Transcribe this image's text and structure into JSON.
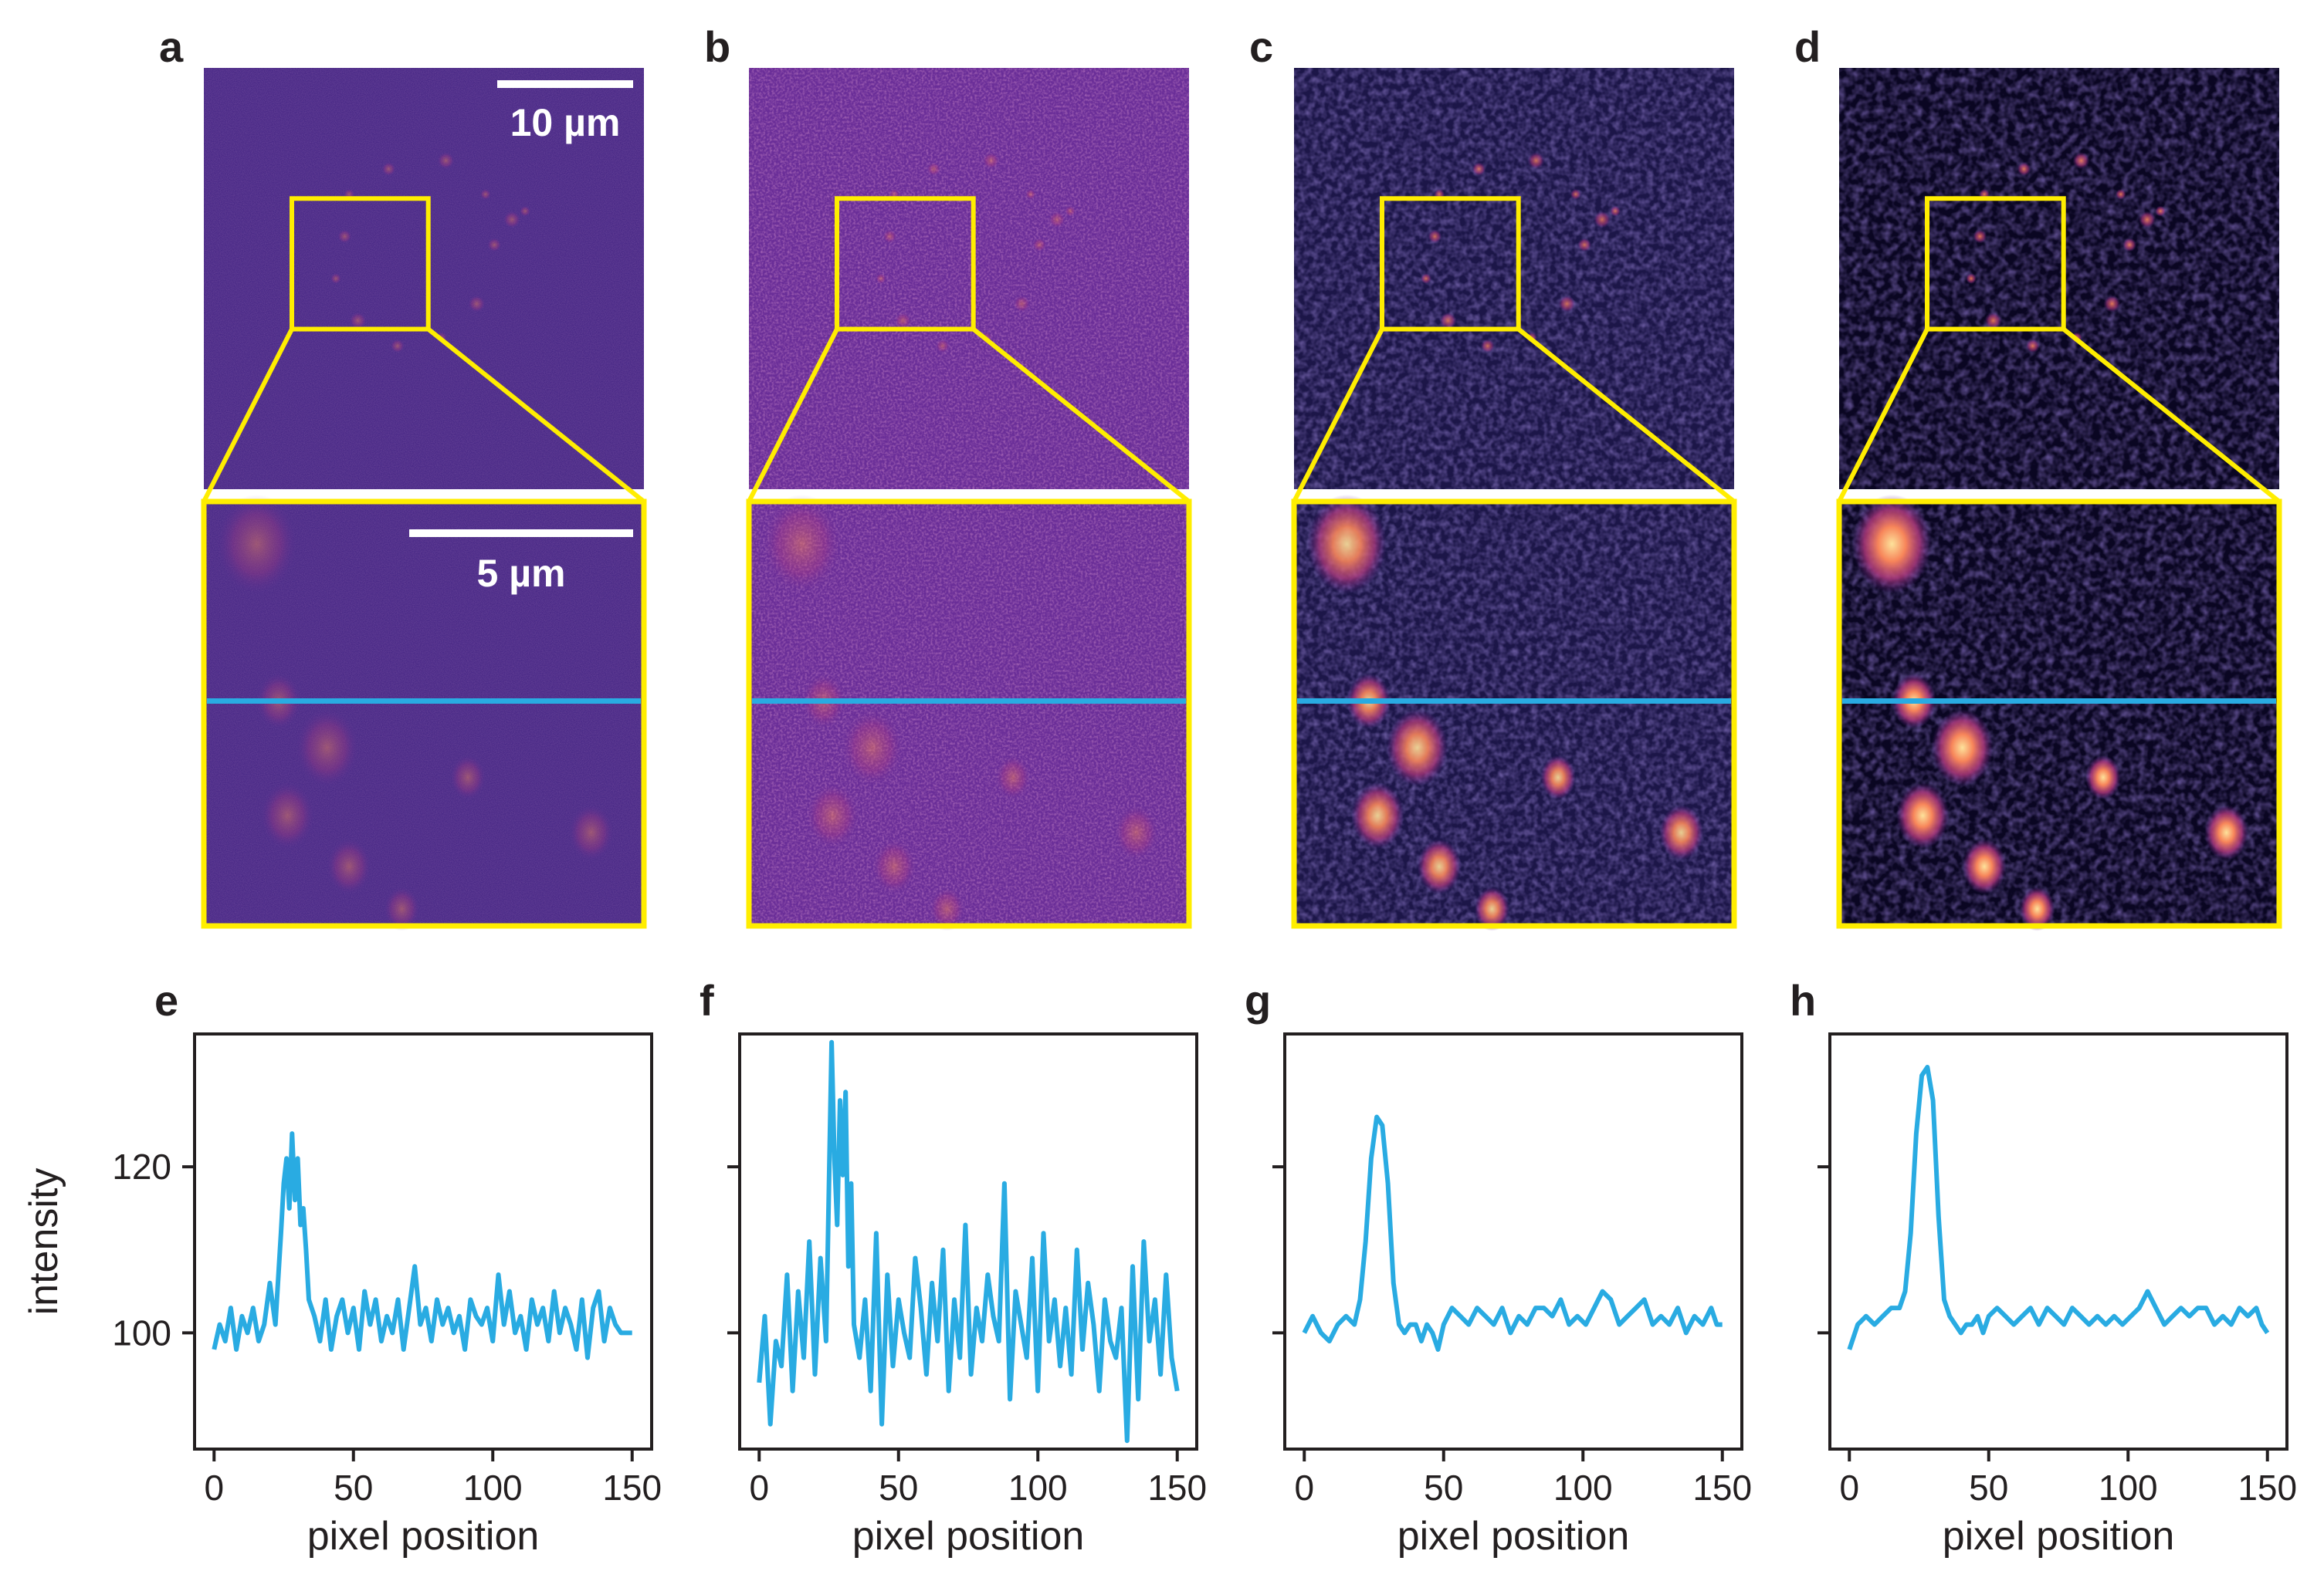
{
  "colors": {
    "frame": "#ffed00",
    "profile_line": "#29abe2",
    "scalebar": "#ffffff",
    "axis": "#231f20"
  },
  "icons": [
    "scale-bar",
    "zoom-box",
    "zoom-guide-lines",
    "line-profile-marker"
  ],
  "panels": {
    "a": {
      "letter": "a",
      "scalebar_main": "10 µm",
      "scalebar_inset": "5 µm",
      "colormap": "magma",
      "background": "#4a2a87"
    },
    "b": {
      "letter": "b",
      "colormap": "magma",
      "background": "#6a2e98"
    },
    "c": {
      "letter": "c",
      "colormap": "magma",
      "background": "#1c1648"
    },
    "d": {
      "letter": "d",
      "colormap": "magma",
      "background": "#0a0622"
    }
  },
  "chart_data": [
    {
      "panel": "e",
      "type": "line",
      "xlabel": "pixel position",
      "ylabel": "intensity",
      "xlim": [
        -7,
        157
      ],
      "ylim": [
        86,
        136
      ],
      "xticks": [
        0,
        50,
        100,
        150
      ],
      "yticks": [
        100,
        120
      ],
      "grid": false,
      "x": [
        0,
        2,
        4,
        6,
        8,
        10,
        12,
        14,
        16,
        18,
        20,
        22,
        24,
        25,
        26,
        27,
        28,
        29,
        30,
        31,
        32,
        33,
        34,
        36,
        38,
        40,
        42,
        44,
        46,
        48,
        50,
        52,
        54,
        56,
        58,
        60,
        62,
        64,
        66,
        68,
        70,
        72,
        74,
        76,
        78,
        80,
        82,
        84,
        86,
        88,
        90,
        92,
        94,
        96,
        98,
        100,
        102,
        104,
        106,
        108,
        110,
        112,
        114,
        116,
        118,
        120,
        122,
        124,
        126,
        128,
        130,
        132,
        134,
        136,
        138,
        140,
        142,
        144,
        146,
        148,
        150
      ],
      "y": [
        98,
        101,
        99,
        103,
        98,
        102,
        100,
        103,
        99,
        101,
        106,
        101,
        112,
        118,
        121,
        115,
        124,
        116,
        121,
        113,
        115,
        110,
        104,
        102,
        99,
        104,
        98,
        102,
        104,
        100,
        103,
        98,
        105,
        101,
        104,
        99,
        102,
        100,
        104,
        98,
        103,
        108,
        101,
        103,
        99,
        104,
        101,
        103,
        100,
        102,
        98,
        104,
        102,
        101,
        103,
        99,
        107,
        101,
        105,
        100,
        102,
        98,
        104,
        101,
        103,
        99,
        105,
        100,
        103,
        101,
        98,
        104,
        97,
        103,
        105,
        99,
        103,
        101,
        100,
        100,
        100
      ]
    },
    {
      "panel": "f",
      "type": "line",
      "xlabel": "pixel position",
      "xlim": [
        -7,
        157
      ],
      "ylim": [
        86,
        136
      ],
      "xticks": [
        0,
        50,
        100,
        150
      ],
      "yticks": [
        100,
        120
      ],
      "grid": false,
      "x": [
        0,
        2,
        4,
        6,
        8,
        10,
        12,
        14,
        16,
        18,
        20,
        22,
        24,
        25,
        26,
        27,
        28,
        29,
        30,
        31,
        32,
        33,
        34,
        36,
        38,
        40,
        42,
        44,
        46,
        48,
        50,
        52,
        54,
        56,
        58,
        60,
        62,
        64,
        66,
        68,
        70,
        72,
        74,
        76,
        78,
        80,
        82,
        84,
        86,
        88,
        90,
        92,
        94,
        96,
        98,
        100,
        102,
        104,
        106,
        108,
        110,
        112,
        114,
        116,
        118,
        120,
        122,
        124,
        126,
        128,
        130,
        132,
        134,
        136,
        138,
        140,
        142,
        144,
        146,
        148,
        150
      ],
      "y": [
        94,
        102,
        89,
        99,
        96,
        107,
        93,
        105,
        97,
        111,
        95,
        109,
        99,
        117,
        135,
        121,
        113,
        128,
        119,
        129,
        108,
        118,
        101,
        97,
        104,
        93,
        112,
        89,
        107,
        96,
        104,
        100,
        97,
        109,
        103,
        95,
        106,
        99,
        110,
        93,
        104,
        97,
        113,
        95,
        103,
        99,
        107,
        102,
        99,
        118,
        92,
        105,
        101,
        97,
        109,
        93,
        112,
        99,
        104,
        96,
        103,
        95,
        110,
        98,
        106,
        101,
        93,
        104,
        99,
        97,
        103,
        87,
        108,
        92,
        111,
        99,
        104,
        95,
        107,
        97,
        93
      ]
    },
    {
      "panel": "g",
      "type": "line",
      "xlabel": "pixel position",
      "xlim": [
        -7,
        157
      ],
      "ylim": [
        86,
        136
      ],
      "xticks": [
        0,
        50,
        100,
        150
      ],
      "yticks": [
        100,
        120
      ],
      "grid": false,
      "x": [
        0,
        3,
        6,
        9,
        12,
        15,
        18,
        20,
        22,
        24,
        26,
        28,
        30,
        32,
        34,
        36,
        38,
        40,
        42,
        44,
        46,
        48,
        50,
        53,
        56,
        59,
        62,
        65,
        68,
        71,
        74,
        77,
        80,
        83,
        86,
        89,
        92,
        95,
        98,
        101,
        104,
        107,
        110,
        113,
        116,
        119,
        122,
        125,
        128,
        131,
        134,
        137,
        140,
        143,
        146,
        148,
        150
      ],
      "y": [
        100,
        102,
        100,
        99,
        101,
        102,
        101,
        104,
        111,
        121,
        126,
        125,
        118,
        106,
        101,
        100,
        101,
        101,
        99,
        101,
        100,
        98,
        101,
        103,
        102,
        101,
        103,
        102,
        101,
        103,
        100,
        102,
        101,
        103,
        103,
        102,
        104,
        101,
        102,
        101,
        103,
        105,
        104,
        101,
        102,
        103,
        104,
        101,
        102,
        101,
        103,
        100,
        102,
        101,
        103,
        101,
        101
      ]
    },
    {
      "panel": "h",
      "type": "line",
      "xlabel": "pixel position",
      "xlim": [
        -7,
        157
      ],
      "ylim": [
        86,
        136
      ],
      "xticks": [
        0,
        50,
        100,
        150
      ],
      "yticks": [
        100,
        120
      ],
      "grid": false,
      "x": [
        0,
        3,
        6,
        9,
        12,
        15,
        18,
        20,
        22,
        24,
        26,
        28,
        30,
        32,
        34,
        36,
        38,
        40,
        42,
        44,
        46,
        48,
        50,
        53,
        56,
        59,
        62,
        65,
        68,
        71,
        74,
        77,
        80,
        83,
        86,
        89,
        92,
        95,
        98,
        101,
        104,
        107,
        110,
        113,
        116,
        119,
        122,
        125,
        128,
        131,
        134,
        137,
        140,
        143,
        146,
        148,
        150
      ],
      "y": [
        98,
        101,
        102,
        101,
        102,
        103,
        103,
        105,
        112,
        124,
        131,
        132,
        128,
        114,
        104,
        102,
        101,
        100,
        101,
        101,
        102,
        100,
        102,
        103,
        102,
        101,
        102,
        103,
        101,
        103,
        102,
        101,
        103,
        102,
        101,
        102,
        101,
        102,
        101,
        102,
        103,
        105,
        103,
        101,
        102,
        103,
        102,
        103,
        103,
        101,
        102,
        101,
        103,
        102,
        103,
        101,
        100
      ]
    }
  ]
}
